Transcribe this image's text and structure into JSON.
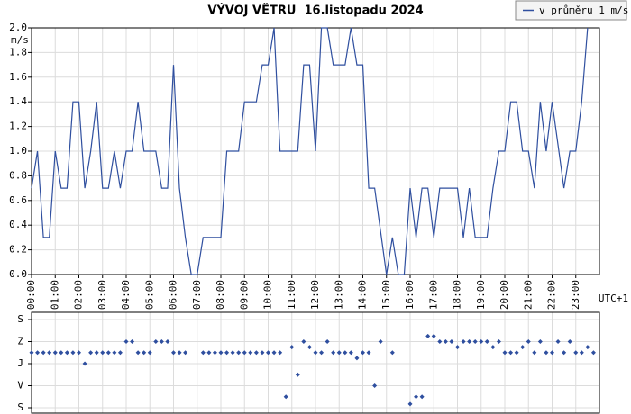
{
  "chart_data": [
    {
      "type": "line",
      "title": "VÝVOJ VĚTRU  16.listopadu 2024",
      "ylabel": "m/s",
      "xlabel": "UTC+1",
      "legend": "top-right",
      "grid": true,
      "xlim": [
        0,
        24
      ],
      "xticks": [
        {
          "value": 0,
          "label": "00:00"
        },
        {
          "value": 1,
          "label": "01:00"
        },
        {
          "value": 2,
          "label": "02:00"
        },
        {
          "value": 3,
          "label": "03:00"
        },
        {
          "value": 4,
          "label": "04:00"
        },
        {
          "value": 5,
          "label": "05:00"
        },
        {
          "value": 6,
          "label": "06:00"
        },
        {
          "value": 7,
          "label": "07:00"
        },
        {
          "value": 8,
          "label": "08:00"
        },
        {
          "value": 9,
          "label": "09:00"
        },
        {
          "value": 10,
          "label": "10:00"
        },
        {
          "value": 11,
          "label": "11:00"
        },
        {
          "value": 12,
          "label": "12:00"
        },
        {
          "value": 13,
          "label": "13:00"
        },
        {
          "value": 14,
          "label": "14:00"
        },
        {
          "value": 15,
          "label": "15:00"
        },
        {
          "value": 16,
          "label": "16:00"
        },
        {
          "value": 17,
          "label": "17:00"
        },
        {
          "value": 18,
          "label": "18:00"
        },
        {
          "value": 19,
          "label": "19:00"
        },
        {
          "value": 20,
          "label": "20:00"
        },
        {
          "value": 21,
          "label": "21:00"
        },
        {
          "value": 22,
          "label": "22:00"
        },
        {
          "value": 23,
          "label": "23:00"
        }
      ],
      "ylim": [
        0,
        2
      ],
      "yticks": [
        {
          "value": 0,
          "label": "0.0"
        },
        0.2,
        0.4,
        0.6,
        0.8,
        {
          "value": 1,
          "label": "1.0"
        },
        1.2,
        1.4,
        1.6,
        1.8,
        {
          "value": 2,
          "label": "2.0"
        }
      ],
      "x": [
        0,
        0.25,
        0.5,
        0.75,
        1.0,
        1.25,
        1.5,
        1.75,
        2.0,
        2.25,
        2.5,
        2.75,
        3.0,
        3.25,
        3.5,
        3.75,
        4.0,
        4.25,
        4.5,
        4.75,
        5.25,
        5.5,
        5.75,
        6.0,
        6.25,
        6.5,
        6.75,
        7.0,
        7.25,
        8.0,
        8.25,
        8.75,
        9.0,
        9.5,
        9.75,
        10.0,
        10.25,
        10.5,
        11.25,
        11.5,
        11.75,
        12.0,
        12.25,
        12.5,
        12.75,
        13.25,
        13.5,
        13.75,
        14.0,
        14.25,
        14.5,
        15.0,
        15.25,
        15.5,
        15.75,
        16.0,
        16.25,
        16.5,
        16.75,
        17.0,
        17.25,
        18.0,
        18.25,
        18.5,
        18.75,
        19.25,
        19.5,
        19.75,
        20.0,
        20.25,
        20.5,
        20.75,
        21.0,
        21.25,
        21.5,
        21.75,
        22.0,
        22.5,
        22.75,
        23.0,
        23.25,
        23.5
      ],
      "series": [
        {
          "name": "v průměru 1 m/s",
          "color": "#2f4f9f",
          "values": [
            0.7,
            1.0,
            0.3,
            0.3,
            1.0,
            0.7,
            0.7,
            1.4,
            1.4,
            0.7,
            1.0,
            1.4,
            0.7,
            0.7,
            1.0,
            0.7,
            1.0,
            1.0,
            1.4,
            1.0,
            1.0,
            0.7,
            0.7,
            1.7,
            0.7,
            0.3,
            0.0,
            0.0,
            0.3,
            0.3,
            1.0,
            1.0,
            1.4,
            1.4,
            1.7,
            1.7,
            2.0,
            1.0,
            1.0,
            1.7,
            1.7,
            1.0,
            2.0,
            2.0,
            1.7,
            1.7,
            2.0,
            1.7,
            1.7,
            0.7,
            0.7,
            0.0,
            0.3,
            0.0,
            0.0,
            0.7,
            0.3,
            0.7,
            0.7,
            0.3,
            0.7,
            0.7,
            0.3,
            0.7,
            0.3,
            0.3,
            0.7,
            1.0,
            1.0,
            1.4,
            1.4,
            1.0,
            1.0,
            0.7,
            1.4,
            1.0,
            1.4,
            0.7,
            1.0,
            1.0,
            1.4,
            2.0
          ]
        }
      ]
    },
    {
      "type": "scatter",
      "color": "#2f4f9f",
      "grid": true,
      "xlim": [
        0,
        24
      ],
      "ylim": [
        0,
        360
      ],
      "yticks": [
        {
          "value": 0,
          "label": "S"
        },
        {
          "value": 90,
          "label": "V"
        },
        {
          "value": 180,
          "label": "J"
        },
        {
          "value": 270,
          "label": "Z"
        },
        {
          "value": 360,
          "label": "S"
        }
      ],
      "x": [
        0,
        0.25,
        0.5,
        0.75,
        1.0,
        1.25,
        1.5,
        1.75,
        2.0,
        2.25,
        2.5,
        2.75,
        3.0,
        3.25,
        3.5,
        3.75,
        4.0,
        4.25,
        4.5,
        4.75,
        5.0,
        5.25,
        5.5,
        5.75,
        6.0,
        6.25,
        6.5,
        7.25,
        7.5,
        7.75,
        8.0,
        8.25,
        8.5,
        8.75,
        9.0,
        9.25,
        9.5,
        9.75,
        10.0,
        10.25,
        10.5,
        10.75,
        11.0,
        11.25,
        11.5,
        11.75,
        12.0,
        12.25,
        12.5,
        12.75,
        13.0,
        13.25,
        13.5,
        13.75,
        14.0,
        14.25,
        14.5,
        14.75,
        15.25,
        16.0,
        16.25,
        16.5,
        16.75,
        17.0,
        17.25,
        17.5,
        17.75,
        18.0,
        18.25,
        18.5,
        18.75,
        19.0,
        19.25,
        19.5,
        19.75,
        20.0,
        20.25,
        20.5,
        20.75,
        21.0,
        21.25,
        21.5,
        21.75,
        22.0,
        22.25,
        22.5,
        22.75,
        23.0,
        23.25,
        23.5,
        23.75
      ],
      "values": [
        225,
        225,
        225,
        225,
        225,
        225,
        225,
        225,
        225,
        180,
        225,
        225,
        225,
        225,
        225,
        225,
        270,
        270,
        225,
        225,
        225,
        270,
        270,
        270,
        225,
        225,
        225,
        225,
        225,
        225,
        225,
        225,
        225,
        225,
        225,
        225,
        225,
        225,
        225,
        225,
        225,
        45,
        247.5,
        135,
        270,
        247.5,
        225,
        225,
        270,
        225,
        225,
        225,
        225,
        202.5,
        225,
        225,
        90,
        270,
        225,
        15,
        45,
        45,
        292.5,
        292.5,
        270,
        270,
        270,
        247.5,
        270,
        270,
        270,
        270,
        270,
        247.5,
        270,
        225,
        225,
        225,
        247.5,
        270,
        225,
        270,
        225,
        225,
        270,
        225,
        270,
        225,
        225,
        247.5,
        225
      ]
    }
  ]
}
